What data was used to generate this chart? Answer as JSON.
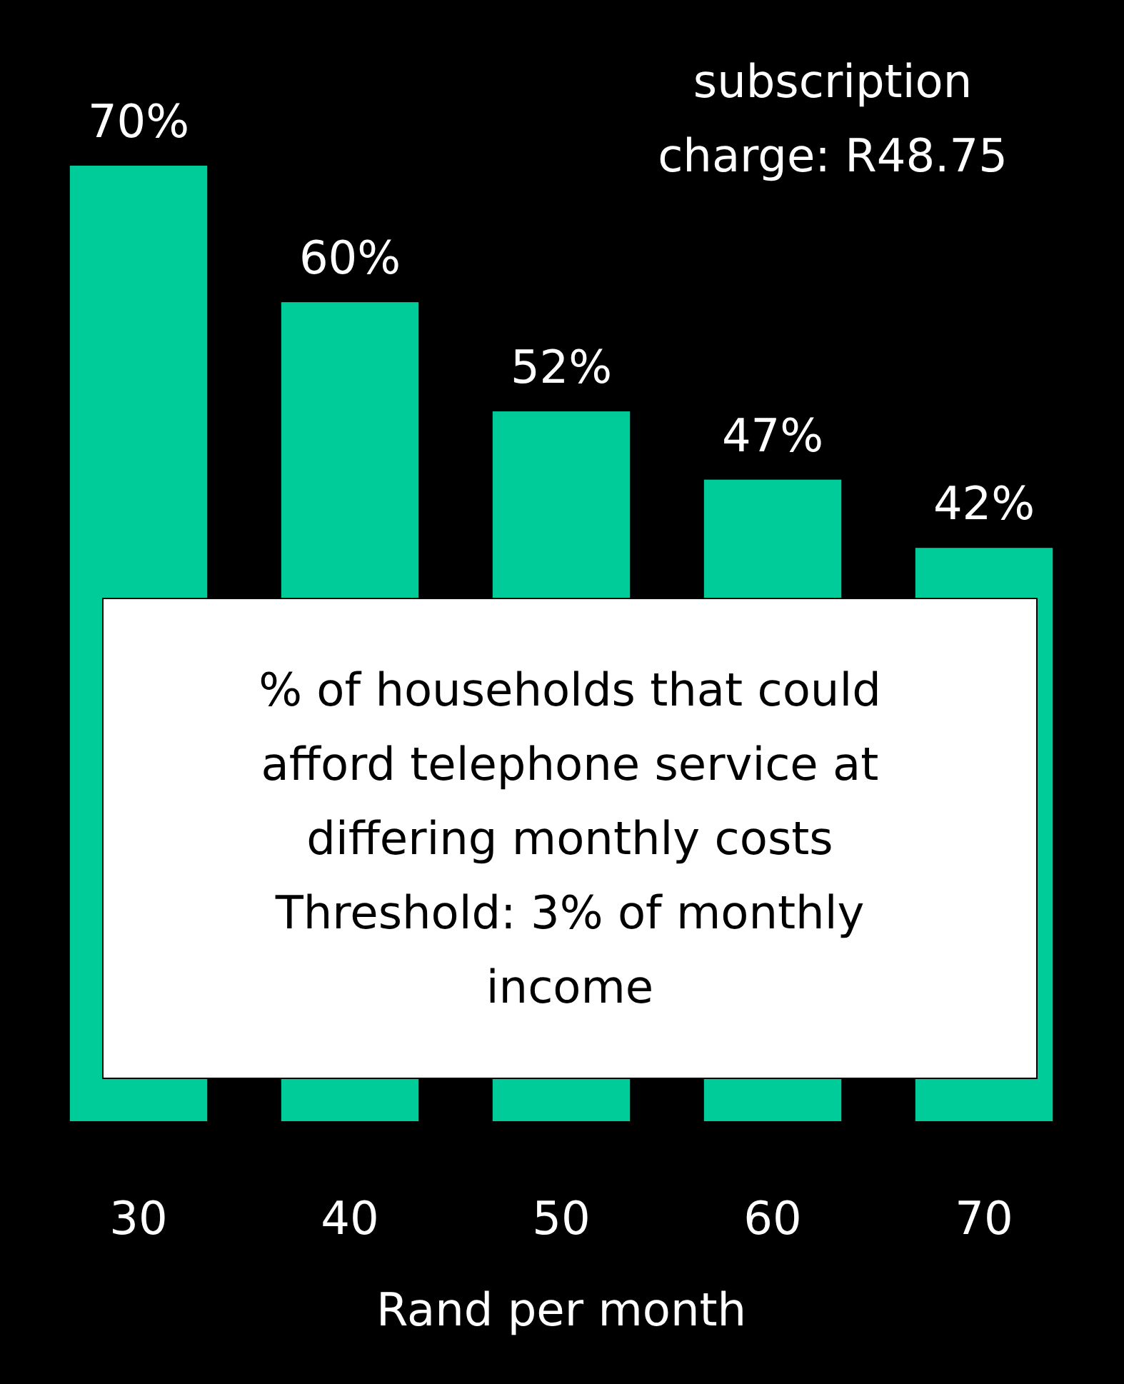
{
  "chart_data": {
    "type": "bar",
    "categories": [
      "30",
      "40",
      "50",
      "60",
      "70"
    ],
    "values": [
      70,
      60,
      52,
      47,
      42
    ],
    "value_labels": [
      "70%",
      "60%",
      "52%",
      "47%",
      "42%"
    ],
    "color": "#00cc99",
    "xlabel": "Rand per month",
    "annotations": [
      "subscription charge: R48.75",
      "% of households that could afford telephone service at differing monthly costs",
      "Threshold: 3% of monthly income"
    ]
  }
}
